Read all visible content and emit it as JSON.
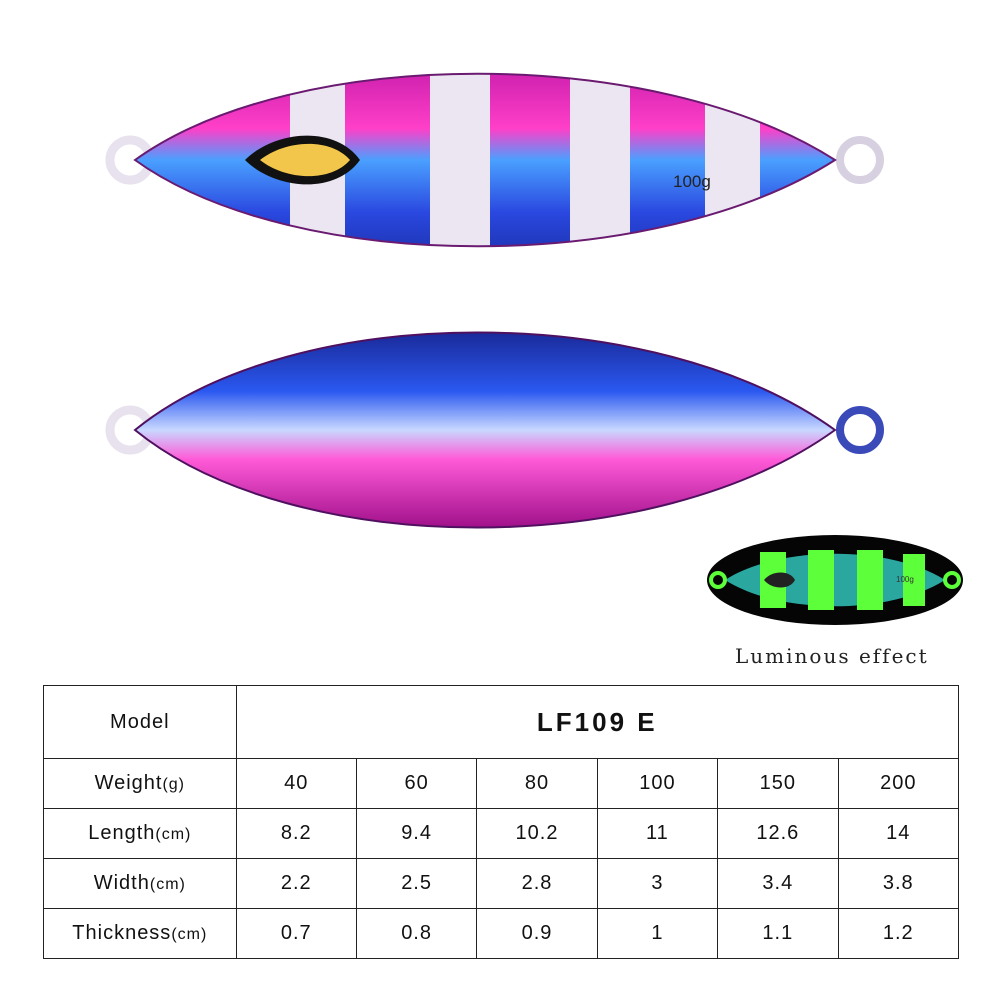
{
  "lure_top": {
    "weight_marking": "100g"
  },
  "glow_image": {
    "weight_marking": "100g",
    "caption": "Luminous effect"
  },
  "colors": {
    "pink": "#e21bb0",
    "blue": "#2a48e0",
    "glow_green": "#5cff3a",
    "stripe_white": "#ece6f2"
  },
  "table": {
    "model_label": "Model",
    "model_value": "LF109 E",
    "rows": [
      {
        "label": "Weight",
        "unit": "(g)",
        "values": [
          "40",
          "60",
          "80",
          "100",
          "150",
          "200"
        ]
      },
      {
        "label": "Length",
        "unit": "(cm)",
        "values": [
          "8.2",
          "9.4",
          "10.2",
          "11",
          "12.6",
          "14"
        ]
      },
      {
        "label": "Width",
        "unit": "(cm)",
        "values": [
          "2.2",
          "2.5",
          "2.8",
          "3",
          "3.4",
          "3.8"
        ]
      },
      {
        "label": "Thickness",
        "unit": "(cm)",
        "values": [
          "0.7",
          "0.8",
          "0.9",
          "1",
          "1.1",
          "1.2"
        ]
      }
    ]
  }
}
